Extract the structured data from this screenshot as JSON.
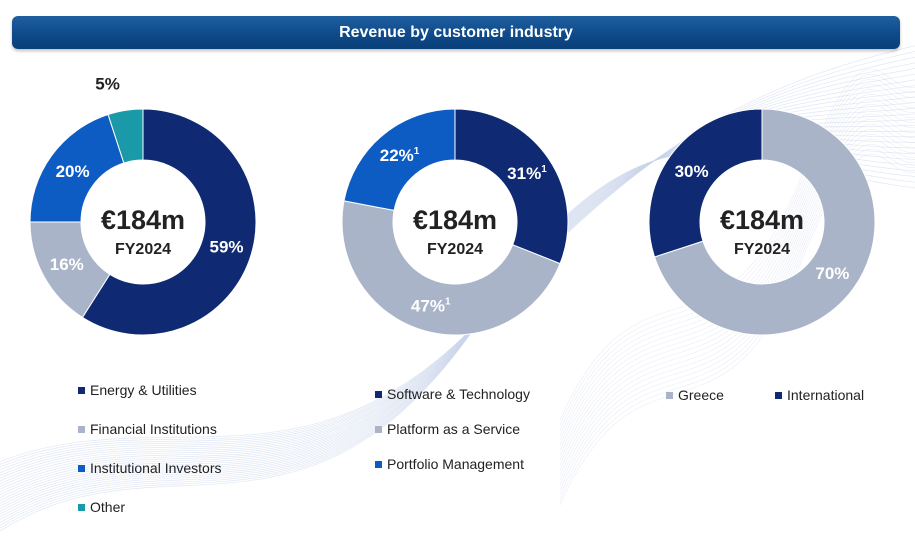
{
  "title": "Revenue by customer industry",
  "colors": {
    "navy": "#0f2a72",
    "grey": "#aab4c8",
    "blue": "#0c5cc4",
    "teal": "#1a9aa8"
  },
  "chart_data": [
    {
      "type": "pie",
      "donut": true,
      "center_value": "€184m",
      "center_label": "FY2024",
      "labels": [
        "Energy & Utilities",
        "Financial Institutions",
        "Institutional Investors",
        "Other"
      ],
      "values": [
        59,
        16,
        20,
        5
      ],
      "display": [
        "59%",
        "16%",
        "20%",
        "5%"
      ],
      "colors": [
        "#0f2a72",
        "#aab4c8",
        "#0c5cc4",
        "#1a9aa8"
      ]
    },
    {
      "type": "pie",
      "donut": true,
      "center_value": "€184m",
      "center_label": "FY2024",
      "labels": [
        "Software & Technology",
        "Platform as a Service",
        "Portfolio Management"
      ],
      "values": [
        31,
        47,
        22
      ],
      "display": [
        "31%",
        "47%",
        "22%"
      ],
      "footnote_marker": "1",
      "colors": [
        "#0f2a72",
        "#aab4c8",
        "#0c5cc4"
      ]
    },
    {
      "type": "pie",
      "donut": true,
      "center_value": "€184m",
      "center_label": "FY2024",
      "labels": [
        "Greece",
        "International"
      ],
      "values": [
        70,
        30
      ],
      "display": [
        "70%",
        "30%"
      ],
      "colors": [
        "#aab4c8",
        "#0f2a72"
      ]
    }
  ]
}
